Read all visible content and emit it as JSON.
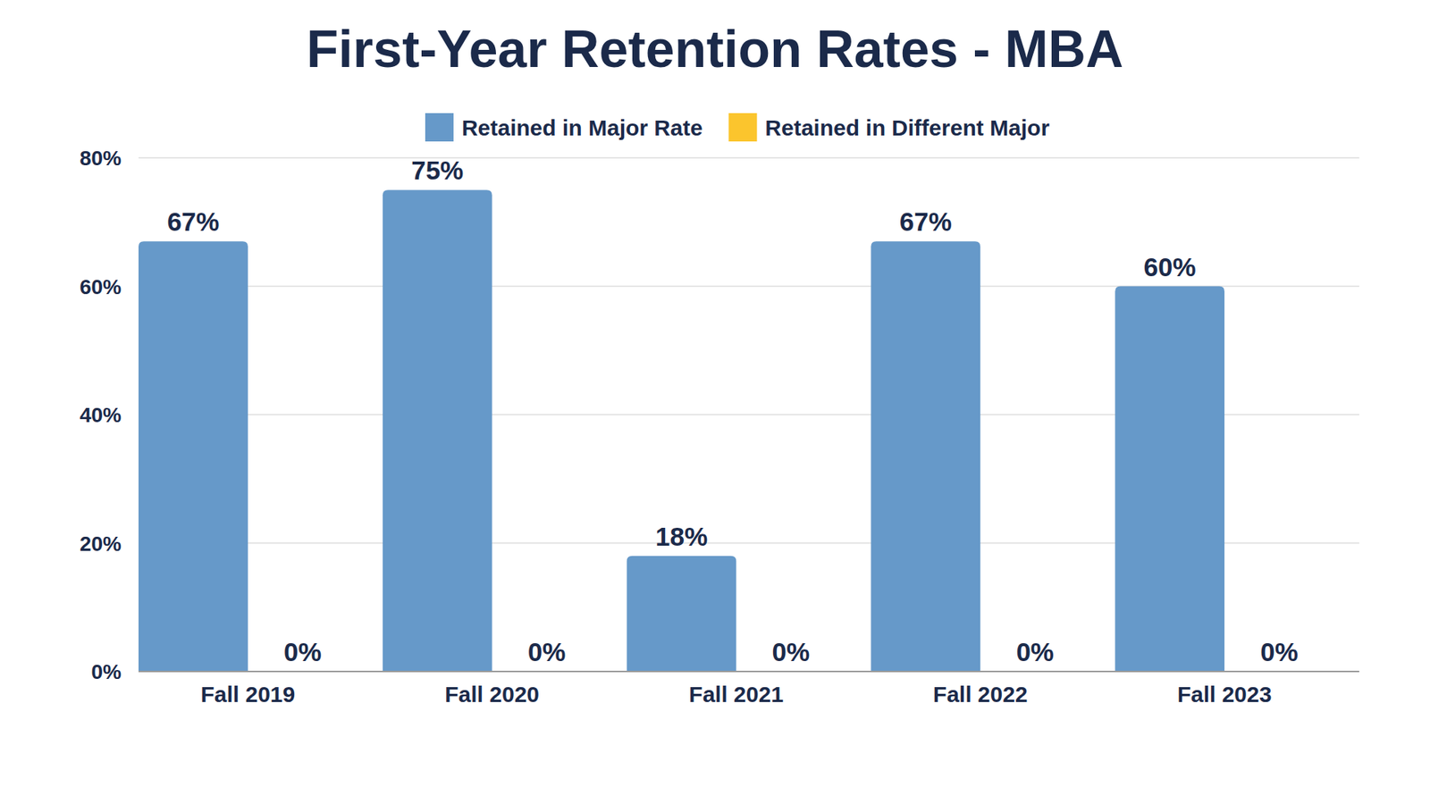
{
  "chart_data": {
    "type": "bar",
    "title": "First-Year Retention Rates - MBA",
    "categories": [
      "Fall 2019",
      "Fall 2020",
      "Fall 2021",
      "Fall 2022",
      "Fall 2023"
    ],
    "series": [
      {
        "name": "Retained in Major Rate",
        "color": "#6699c9",
        "values": [
          67,
          75,
          18,
          67,
          60
        ],
        "value_labels": [
          "67%",
          "75%",
          "18%",
          "67%",
          "60%"
        ]
      },
      {
        "name": "Retained in Different Major",
        "color": "#fbc52d",
        "values": [
          0,
          0,
          0,
          0,
          0
        ],
        "value_labels": [
          "0%",
          "0%",
          "0%",
          "0%",
          "0%"
        ]
      }
    ],
    "ylim": [
      0,
      80
    ],
    "yticks": [
      {
        "value": 0,
        "label": "0%"
      },
      {
        "value": 20,
        "label": "20%"
      },
      {
        "value": 40,
        "label": "40%"
      },
      {
        "value": 60,
        "label": "60%"
      },
      {
        "value": 80,
        "label": "80%"
      }
    ],
    "grid": true,
    "legend": "top",
    "data_labels": true
  }
}
